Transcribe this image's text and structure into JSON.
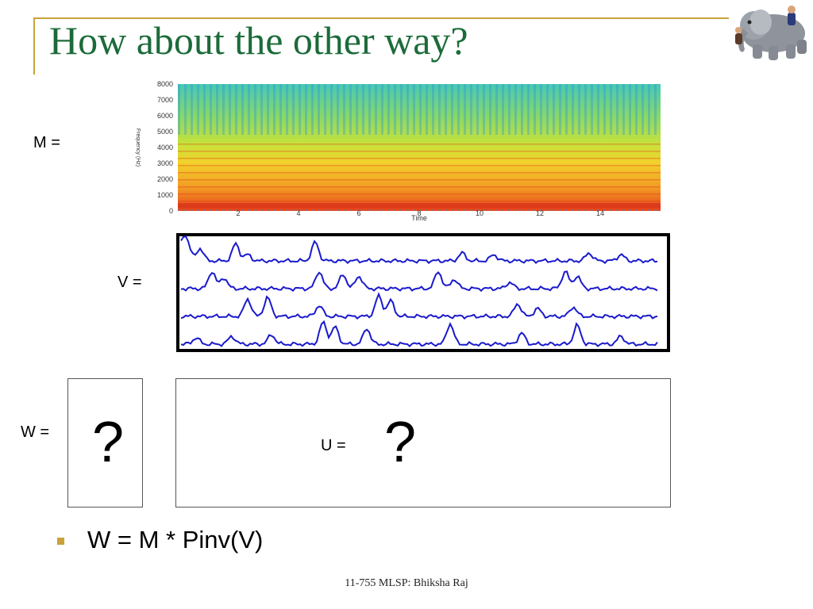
{
  "slide": {
    "title": "How about the other way?",
    "logo_icon": "elephant-cartoon-icon",
    "accent_color": "#c9a23a",
    "title_color": "#1c6b3a"
  },
  "m_panel": {
    "label": "M =",
    "ylabel": "Frequency (Hz)",
    "xlabel": "Time",
    "y_ticks": [
      "8000",
      "7000",
      "6000",
      "5000",
      "4000",
      "3000",
      "2000",
      "1000",
      "0"
    ],
    "x_ticks": [
      "2",
      "4",
      "6",
      "8",
      "10",
      "12",
      "14"
    ]
  },
  "v_panel": {
    "label": "V =",
    "row_count": 4,
    "line_color": "#1a1acc"
  },
  "w_panel": {
    "label": "W =",
    "value": "?"
  },
  "u_panel": {
    "label": "U =",
    "value": "?"
  },
  "bullet": {
    "text": "W = M * Pinv(V)"
  },
  "footer": {
    "text": "11-755 MLSP: Bhiksha Raj"
  }
}
